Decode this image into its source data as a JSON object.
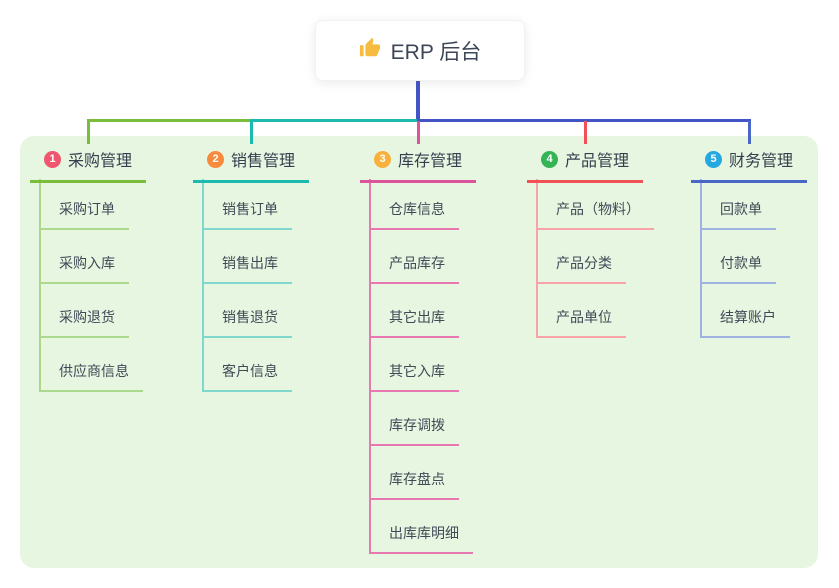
{
  "root": {
    "title": "ERP 后台",
    "icon": "thumbs-up-icon",
    "icon_color": "#f5bc3f"
  },
  "connector": {
    "trunk_color": "#4254c6"
  },
  "canvas": {
    "panel_bg": "#e7f6e1"
  },
  "branches": [
    {
      "num": "1",
      "label": "采购管理",
      "badge_color": "#ef5670",
      "line_color": "#7abd3d",
      "child_line_color": "#abd88c",
      "children": [
        "采购订单",
        "采购入库",
        "采购退货",
        "供应商信息"
      ]
    },
    {
      "num": "2",
      "label": "销售管理",
      "badge_color": "#f78a3c",
      "line_color": "#1cb9ae",
      "child_line_color": "#7fd7ce",
      "children": [
        "销售订单",
        "销售出库",
        "销售退货",
        "客户信息"
      ]
    },
    {
      "num": "3",
      "label": "库存管理",
      "badge_color": "#f9b13c",
      "line_color": "#dc549c",
      "child_line_color": "#e878b2",
      "children": [
        "仓库信息",
        "产品库存",
        "其它出库",
        "其它入库",
        "库存调拨",
        "库存盘点",
        "出库库明细"
      ]
    },
    {
      "num": "4",
      "label": "产品管理",
      "badge_color": "#34b457",
      "line_color": "#f25059",
      "child_line_color": "#f7a3a8",
      "children": [
        "产品（物料）",
        "产品分类",
        "产品单位"
      ]
    },
    {
      "num": "5",
      "label": "财务管理",
      "badge_color": "#25a8e0",
      "line_color": "#4a66c6",
      "child_line_color": "#9fb3e2",
      "children": [
        "回款单",
        "付款单",
        "结算账户"
      ]
    }
  ]
}
